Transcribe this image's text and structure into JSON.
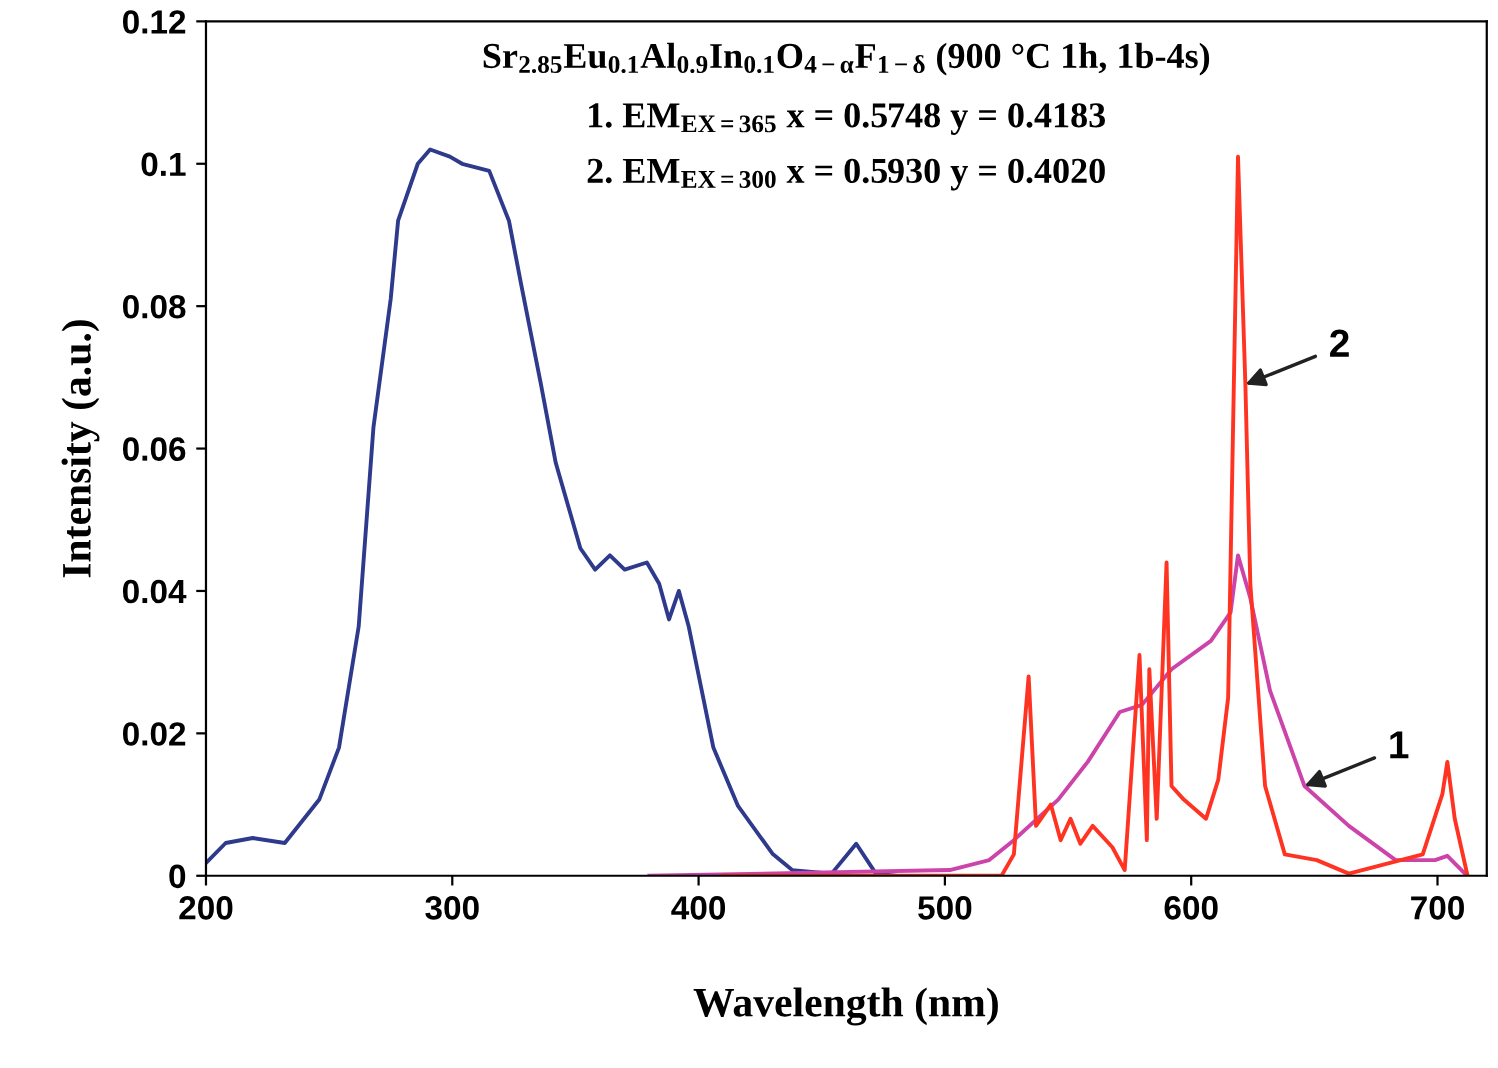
{
  "chart_data": {
    "type": "line",
    "title": "Sr$_{2.85}$Eu$_{0.1}$Al$_{0.9}$In$_{0.1}$O$_{4−α}$F$_{1−δ}$ (900 °C 1h, 1b-4s)",
    "xlabel": "Wavelength (nm)",
    "ylabel": "Intensity (a.u.)",
    "xlim": [
      200,
      720
    ],
    "xticks": [
      200,
      300,
      400,
      500,
      600,
      700
    ],
    "ylim": [
      0,
      0.12
    ],
    "yticks": [
      0,
      0.02,
      0.04,
      0.06,
      0.08,
      0.1,
      0.12
    ],
    "grid": false,
    "legend": false,
    "marker": "none",
    "line_style": "solid",
    "series": [
      {
        "color": "#2e3a8c",
        "x": [
          200,
          208,
          219,
          232,
          246,
          254,
          262,
          268,
          275,
          278,
          286,
          291,
          299,
          304,
          315,
          323,
          328,
          336,
          342,
          352,
          358,
          364,
          370,
          379,
          384,
          388,
          392,
          396,
          406,
          416,
          430,
          438,
          454,
          464,
          472,
          480
        ],
        "values": [
          0.0018,
          0.0046,
          0.0053,
          0.0046,
          0.0107,
          0.018,
          0.035,
          0.063,
          0.081,
          0.092,
          0.1,
          0.102,
          0.101,
          0.1,
          0.099,
          0.092,
          0.083,
          0.069,
          0.058,
          0.046,
          0.043,
          0.045,
          0.043,
          0.044,
          0.041,
          0.036,
          0.04,
          0.035,
          0.018,
          0.0098,
          0.0031,
          0.0008,
          0.0003,
          0.0045,
          0.0003,
          0
        ]
      },
      {
        "color": "#cc44aa",
        "x": [
          380,
          502,
          518,
          528,
          546,
          558,
          571,
          580,
          592,
          608,
          616,
          619,
          624,
          632,
          646,
          664,
          683,
          699,
          704,
          712
        ],
        "values": [
          0,
          0.0008,
          0.0022,
          0.005,
          0.0107,
          0.016,
          0.023,
          0.024,
          0.029,
          0.033,
          0.037,
          0.045,
          0.039,
          0.026,
          0.0126,
          0.007,
          0.0022,
          0.0022,
          0.0028,
          0
        ]
      },
      {
        "color": "#ff3322",
        "x": [
          410,
          523,
          528,
          534,
          537,
          543,
          547,
          551,
          555,
          560,
          568,
          573,
          579,
          582,
          583,
          586,
          590,
          592,
          597,
          606,
          611,
          615,
          619,
          622,
          624,
          630,
          638,
          651,
          664,
          694,
          702,
          704,
          707,
          712
        ],
        "values": [
          0,
          0,
          0.003,
          0.028,
          0.007,
          0.01,
          0.005,
          0.008,
          0.0045,
          0.007,
          0.004,
          0.0008,
          0.031,
          0.005,
          0.029,
          0.008,
          0.044,
          0.0126,
          0.0107,
          0.008,
          0.0135,
          0.025,
          0.101,
          0.069,
          0.041,
          0.0126,
          0.003,
          0.0022,
          0.0003,
          0.003,
          0.0115,
          0.016,
          0.008,
          0.0003
        ]
      }
    ],
    "annotations": [
      "1. EM$_{EX=365}$ x = 0.5748 y = 0.4183",
      "2. EM$_{EX=300}$ x = 0.5930 y = 0.4020",
      {
        "text": "2",
        "x": 622,
        "y": 0.069
      },
      {
        "text": "1",
        "x": 646,
        "y": 0.0126
      }
    ]
  }
}
